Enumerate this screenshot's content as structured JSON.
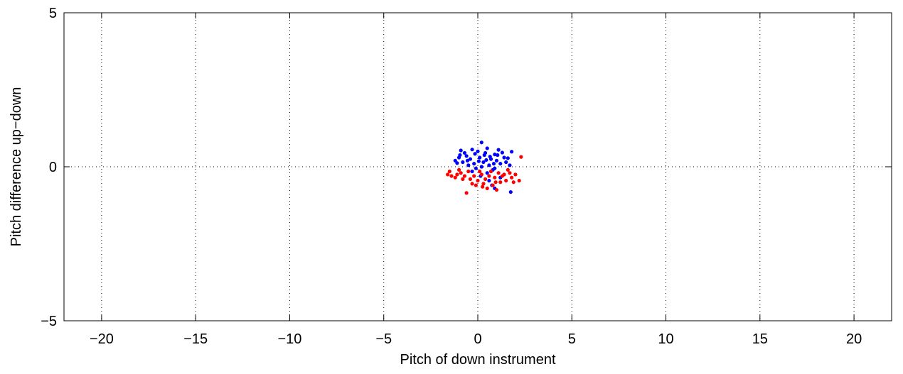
{
  "chart_data": {
    "type": "scatter",
    "title": "",
    "xlabel": "Pitch of down instrument",
    "ylabel": "Pitch difference up−down",
    "xlim": [
      -22,
      22
    ],
    "ylim": [
      -5,
      5
    ],
    "xticks": [
      -20,
      -15,
      -10,
      -5,
      0,
      5,
      10,
      15,
      20
    ],
    "xtick_labels": [
      "−20",
      "−15",
      "−10",
      "−5",
      "0",
      "5",
      "10",
      "15",
      "20"
    ],
    "yticks": [
      -5,
      0,
      5
    ],
    "ytick_labels": [
      "−5",
      "0",
      "5"
    ],
    "grid": true,
    "legend": "none",
    "series": [
      {
        "color": "#0000ff",
        "points": [
          [
            0.2,
            0.79
          ],
          [
            1.1,
            0.55
          ],
          [
            1.3,
            0.46
          ],
          [
            1.8,
            0.49
          ],
          [
            -0.9,
            0.53
          ],
          [
            -0.7,
            0.45
          ],
          [
            -0.3,
            0.56
          ],
          [
            0.5,
            0.6
          ],
          [
            0.9,
            0.4
          ],
          [
            -1.0,
            0.3
          ],
          [
            -1.1,
            0.12
          ],
          [
            -1.2,
            0.2
          ],
          [
            1.5,
            0.15
          ],
          [
            1.7,
            0.05
          ],
          [
            -0.6,
            0.35
          ],
          [
            0.0,
            0.5
          ],
          [
            0.4,
            0.45
          ],
          [
            0.7,
            0.25
          ],
          [
            -0.4,
            0.25
          ],
          [
            0.1,
            0.3
          ],
          [
            0.3,
            0.15
          ],
          [
            -0.2,
            0.1
          ],
          [
            0.6,
            0.05
          ],
          [
            1.0,
            0.2
          ],
          [
            -0.8,
            0.15
          ],
          [
            0.8,
            -0.1
          ],
          [
            0.5,
            -0.2
          ],
          [
            -0.1,
            -0.05
          ],
          [
            0.2,
            0.0
          ],
          [
            1.2,
            0.1
          ],
          [
            0.9,
            -0.05
          ],
          [
            -0.5,
            0.05
          ],
          [
            1.4,
            0.3
          ],
          [
            0.35,
            0.38
          ],
          [
            -0.15,
            0.42
          ],
          [
            1.75,
            -0.82
          ],
          [
            0.9,
            -0.7
          ],
          [
            0.75,
            -0.6
          ],
          [
            0.6,
            -0.45
          ],
          [
            1.2,
            -0.35
          ],
          [
            0.15,
            -0.3
          ],
          [
            -0.3,
            -0.15
          ],
          [
            0.45,
            0.22
          ],
          [
            0.05,
            0.18
          ],
          [
            0.65,
            0.33
          ],
          [
            1.05,
            0.38
          ],
          [
            -0.55,
            0.2
          ],
          [
            1.6,
            0.28
          ],
          [
            0.85,
            0.1
          ],
          [
            -0.95,
            0.38
          ]
        ]
      },
      {
        "color": "#ff0000",
        "points": [
          [
            2.3,
            0.32
          ],
          [
            -1.6,
            -0.25
          ],
          [
            -1.4,
            -0.3
          ],
          [
            -1.2,
            -0.35
          ],
          [
            -0.9,
            -0.2
          ],
          [
            -0.6,
            -0.85
          ],
          [
            -0.3,
            -0.55
          ],
          [
            0.0,
            -0.45
          ],
          [
            0.3,
            -0.55
          ],
          [
            0.5,
            -0.7
          ],
          [
            0.8,
            -0.6
          ],
          [
            1.0,
            -0.75
          ],
          [
            1.2,
            -0.5
          ],
          [
            1.5,
            -0.45
          ],
          [
            1.8,
            -0.35
          ],
          [
            2.2,
            -0.45
          ],
          [
            2.0,
            -0.25
          ],
          [
            1.7,
            -0.2
          ],
          [
            1.3,
            -0.3
          ],
          [
            0.9,
            -0.35
          ],
          [
            0.6,
            -0.3
          ],
          [
            0.2,
            -0.25
          ],
          [
            -0.2,
            -0.3
          ],
          [
            -0.5,
            -0.15
          ],
          [
            -1.0,
            -0.1
          ],
          [
            -0.8,
            -0.4
          ],
          [
            0.4,
            -0.4
          ],
          [
            1.1,
            -0.2
          ],
          [
            0.1,
            -0.15
          ],
          [
            -0.4,
            -0.4
          ],
          [
            0.7,
            -0.15
          ],
          [
            1.4,
            -0.25
          ],
          [
            -1.5,
            -0.15
          ],
          [
            -0.1,
            -0.6
          ],
          [
            1.9,
            -0.5
          ],
          [
            0.25,
            -0.65
          ],
          [
            -0.7,
            -0.3
          ],
          [
            1.6,
            -0.1
          ],
          [
            0.95,
            -0.5
          ],
          [
            -1.1,
            -0.25
          ]
        ]
      }
    ]
  }
}
